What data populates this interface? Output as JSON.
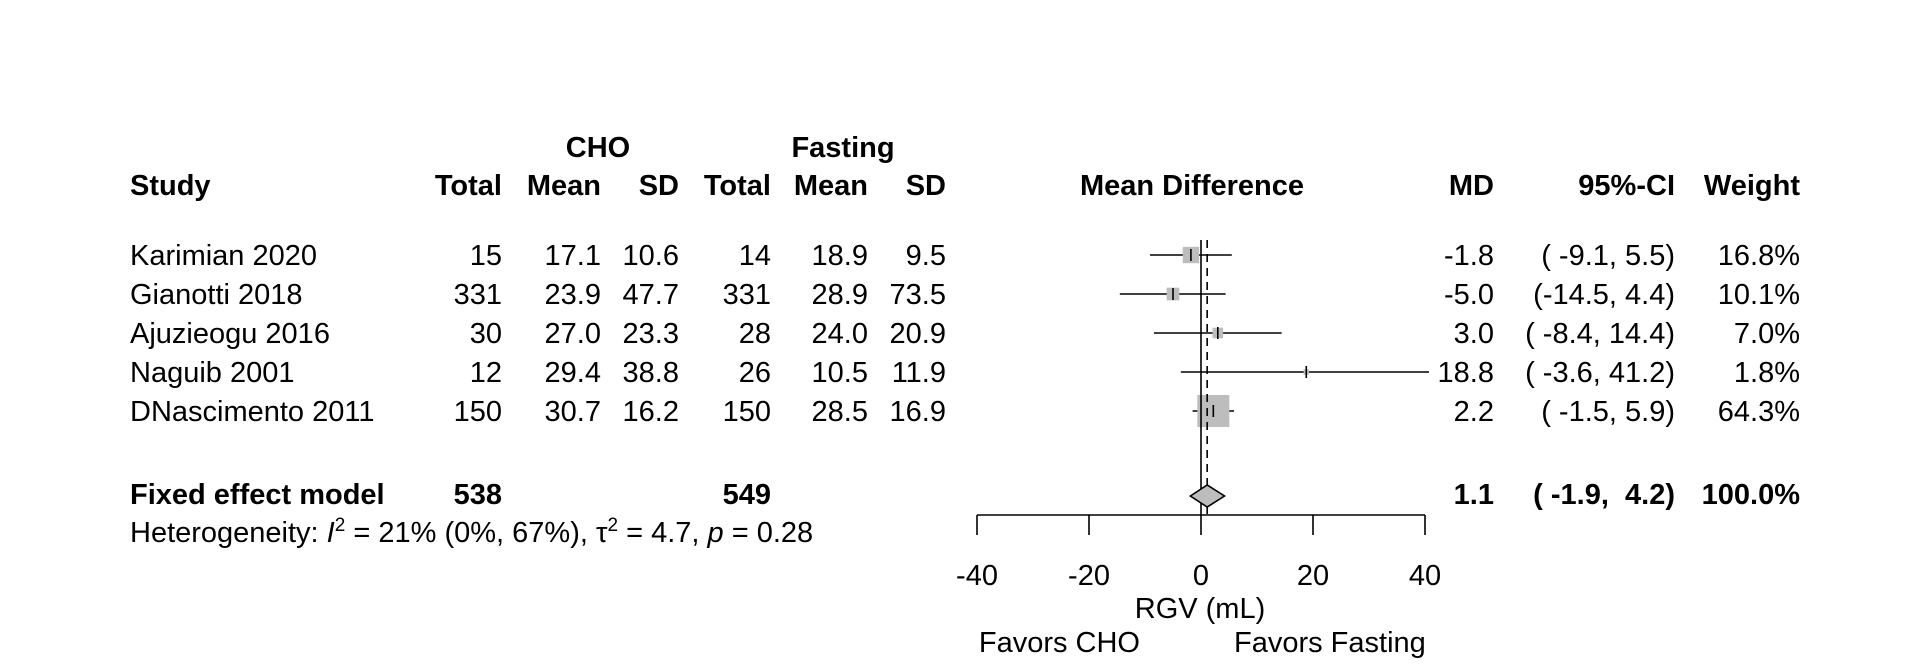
{
  "chart_data": {
    "type": "forest",
    "headers": {
      "group1": "CHO",
      "group2": "Fasting",
      "study": "Study",
      "total": "Total",
      "mean": "Mean",
      "sd": "SD",
      "plot": "Mean Difference",
      "md": "MD",
      "ci": "95%-CI",
      "weight": "Weight"
    },
    "studies": [
      {
        "study": "Karimian 2020",
        "n1": "15",
        "mean1": "17.1",
        "sd1": "10.6",
        "n2": "14",
        "mean2": "18.9",
        "sd2": "9.5",
        "md": -1.8,
        "lo": -9.1,
        "hi": 5.5,
        "md_text": "-1.8",
        "ci_text": "( -9.1,  5.5)",
        "weight": 16.8,
        "weight_text": "16.8%"
      },
      {
        "study": "Gianotti 2018",
        "n1": "331",
        "mean1": "23.9",
        "sd1": "47.7",
        "n2": "331",
        "mean2": "28.9",
        "sd2": "73.5",
        "md": -5.0,
        "lo": -14.5,
        "hi": 4.4,
        "md_text": "-5.0",
        "ci_text": "(-14.5,  4.4)",
        "weight": 10.1,
        "weight_text": "10.1%"
      },
      {
        "study": "Ajuzieogu 2016",
        "n1": "30",
        "mean1": "27.0",
        "sd1": "23.3",
        "n2": "28",
        "mean2": "24.0",
        "sd2": "20.9",
        "md": 3.0,
        "lo": -8.4,
        "hi": 14.4,
        "md_text": "3.0",
        "ci_text": "( -8.4, 14.4)",
        "weight": 7.0,
        "weight_text": "7.0%"
      },
      {
        "study": "Naguib 2001",
        "n1": "12",
        "mean1": "29.4",
        "sd1": "38.8",
        "n2": "26",
        "mean2": "10.5",
        "sd2": "11.9",
        "md": 18.8,
        "lo": -3.6,
        "hi": 41.2,
        "md_text": "18.8",
        "ci_text": "( -3.6, 41.2)",
        "weight": 1.8,
        "weight_text": "1.8%"
      },
      {
        "study": "DNascimento 2011",
        "n1": "150",
        "mean1": "30.7",
        "sd1": "16.2",
        "n2": "150",
        "mean2": "28.5",
        "sd2": "16.9",
        "md": 2.2,
        "lo": -1.5,
        "hi": 5.9,
        "md_text": "2.2",
        "ci_text": "( -1.5,  5.9)",
        "weight": 64.3,
        "weight_text": "64.3%"
      }
    ],
    "pooled": {
      "label": "Fixed effect model",
      "n1": "538",
      "n2": "549",
      "md": 1.1,
      "lo": -1.9,
      "hi": 4.2,
      "md_text": "1.1",
      "ci_text": "( -1.9,  4.2)",
      "weight_text": "100.0%"
    },
    "heterogeneity": {
      "prefix": "Heterogeneity: ",
      "i2_symbol": "I",
      "sup": "2",
      "i2_text": " = 21% (0%, 67%), ",
      "tau_symbol": "τ",
      "tau_text": " = 4.7, ",
      "p_symbol": "p",
      "p_text": " = 0.28"
    },
    "xlim": [
      -40,
      40
    ],
    "x_ticks": [
      -40,
      -20,
      0,
      20,
      40
    ],
    "null_value": 0,
    "xlabel": "RGV (mL)",
    "favors_left": "Favors CHO",
    "favors_right": "Favors Fasting"
  }
}
